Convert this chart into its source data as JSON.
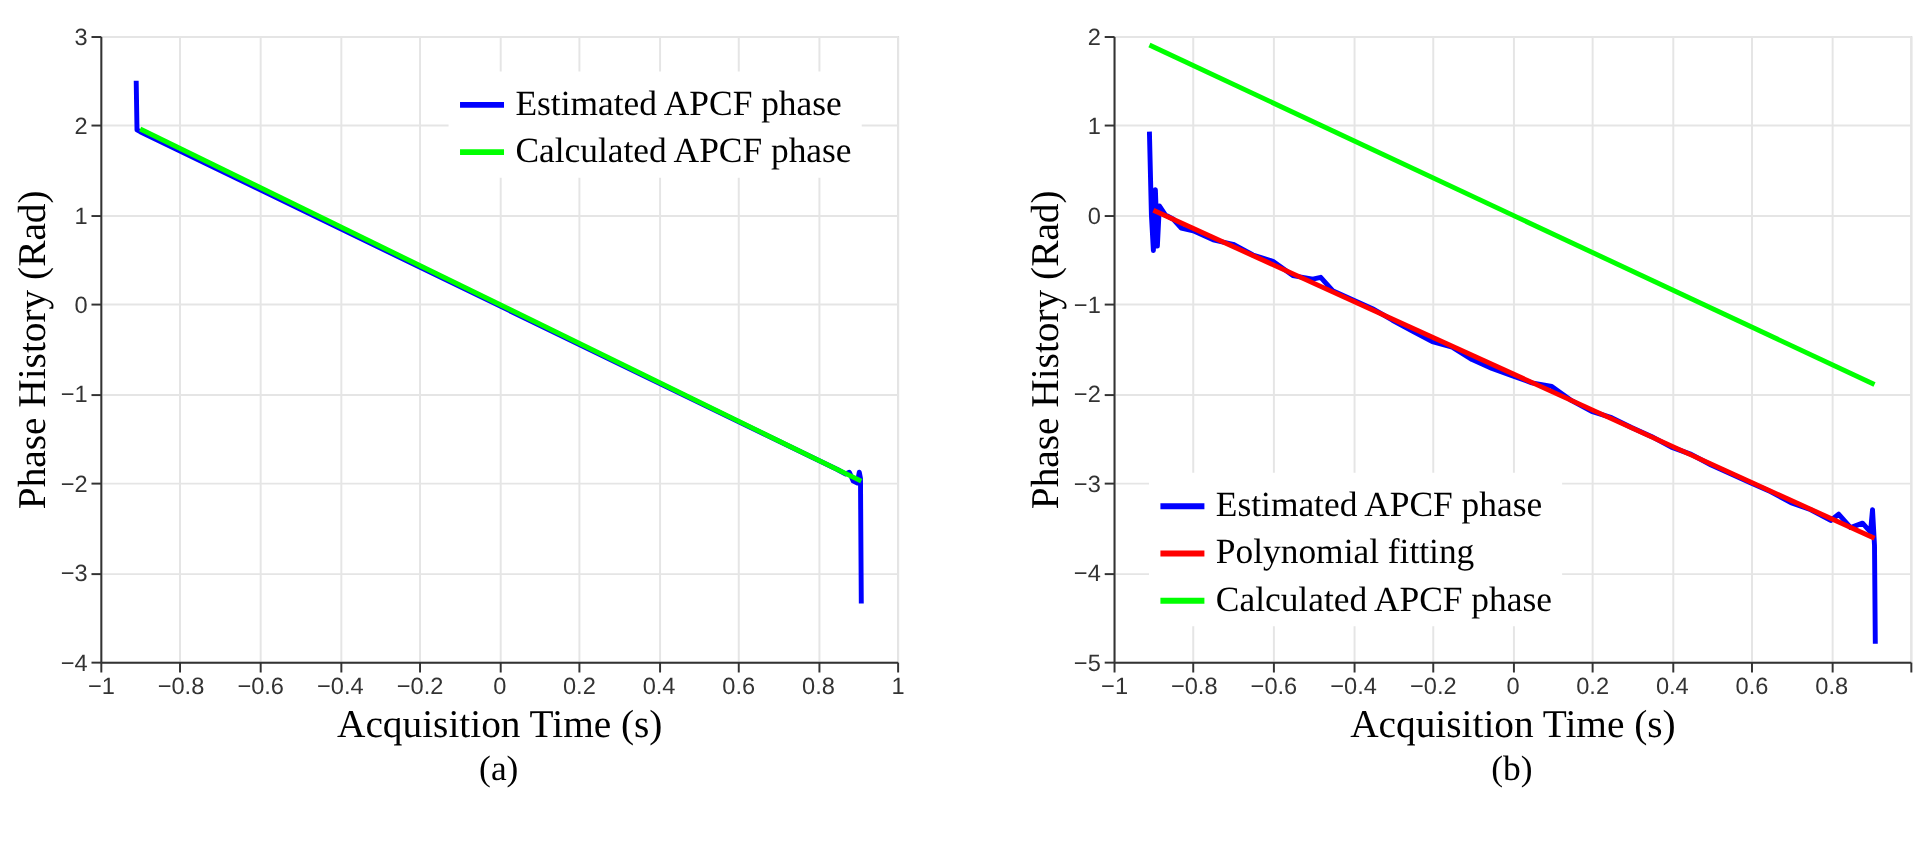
{
  "chart_data": [
    {
      "type": "line",
      "title": "(a)",
      "xlabel": "Acquisition Time (s)",
      "ylabel": "Phase History (Rad)",
      "xlim": [
        -1,
        1
      ],
      "ylim": [
        -4,
        3
      ],
      "xticks": [
        -1,
        -0.8,
        -0.6,
        -0.4,
        -0.2,
        0,
        0.2,
        0.4,
        0.6,
        0.8,
        1
      ],
      "yticks": [
        -4,
        -3,
        -2,
        -1,
        0,
        1,
        2,
        3
      ],
      "grid": true,
      "legend": "top right",
      "marker": "none",
      "line_style": "solid",
      "series": [
        {
          "name": "Estimated APCF phase",
          "color": "#0000ff",
          "x": [
            -0.91,
            -0.908,
            -0.9,
            0.85,
            0.87,
            0.88,
            0.89,
            0.9,
            0.905,
            0.908,
            0.91
          ],
          "values": [
            2.5,
            1.95,
            1.93,
            -1.85,
            -1.9,
            -1.88,
            -1.98,
            -2.0,
            -1.88,
            -1.95,
            -3.35
          ]
        },
        {
          "name": "Calculated APCF phase",
          "color": "#00ff00",
          "x": [
            -0.9,
            0.91
          ],
          "values": [
            1.96,
            -1.98
          ]
        }
      ]
    },
    {
      "type": "line",
      "title": "(b)",
      "xlabel": "Acquisition Time (s)",
      "ylabel": "Phase History (Rad)",
      "xlim": [
        -1,
        1
      ],
      "ylim": [
        -5,
        2
      ],
      "xticks": [
        -1,
        -0.8,
        -0.6,
        -0.4,
        -0.2,
        0,
        0.2,
        0.4,
        0.6,
        0.8,
        {
          "value": 1,
          "label": null
        }
      ],
      "yticks": [
        -5,
        -4,
        -3,
        -2,
        -1,
        0,
        1,
        2
      ],
      "grid": true,
      "legend": "bottom left",
      "marker": "none",
      "line_style": "solid",
      "series": [
        {
          "name": "Estimated APCF phase",
          "color": "#0000ff",
          "x": [
            -0.91,
            -0.905,
            -0.9,
            -0.895,
            -0.89,
            -0.885,
            -0.87,
            -0.85,
            -0.83,
            -0.8,
            -0.75,
            -0.7,
            -0.65,
            -0.6,
            -0.55,
            -0.5,
            -0.48,
            -0.45,
            -0.4,
            -0.35,
            -0.3,
            -0.25,
            -0.2,
            -0.15,
            -0.1,
            -0.05,
            0,
            0.05,
            0.1,
            0.15,
            0.2,
            0.25,
            0.3,
            0.35,
            0.4,
            0.45,
            0.5,
            0.55,
            0.6,
            0.65,
            0.7,
            0.75,
            0.8,
            0.82,
            0.85,
            0.88,
            0.9,
            0.905,
            0.91,
            0.912
          ],
          "values": [
            0.93,
            0.0,
            -0.4,
            0.28,
            -0.35,
            0.1,
            0.0,
            -0.05,
            -0.15,
            -0.18,
            -0.28,
            -0.33,
            -0.45,
            -0.52,
            -0.68,
            -0.72,
            -0.7,
            -0.85,
            -0.95,
            -1.05,
            -1.18,
            -1.3,
            -1.42,
            -1.48,
            -1.62,
            -1.72,
            -1.8,
            -1.88,
            -1.92,
            -2.08,
            -2.2,
            -2.27,
            -2.38,
            -2.48,
            -2.6,
            -2.68,
            -2.8,
            -2.9,
            -3.0,
            -3.1,
            -3.22,
            -3.3,
            -3.42,
            -3.35,
            -3.5,
            -3.45,
            -3.55,
            -3.3,
            -3.7,
            -4.8
          ]
        },
        {
          "name": "Polynomial fitting",
          "color": "#ff0000",
          "x": [
            -0.9,
            0.91
          ],
          "values": [
            0.05,
            -3.62
          ]
        },
        {
          "name": "Calculated APCF phase",
          "color": "#00ff00",
          "x": [
            -0.91,
            0.91
          ],
          "values": [
            1.9,
            -1.9
          ]
        }
      ]
    }
  ]
}
